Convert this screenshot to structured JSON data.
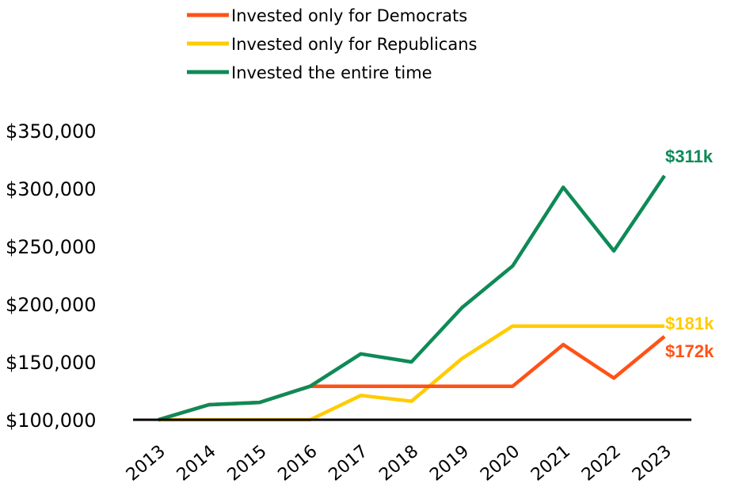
{
  "chart_data": {
    "type": "line",
    "title": "",
    "xlabel": "",
    "ylabel": "",
    "x": [
      "2013",
      "2014",
      "2015",
      "2016",
      "2017",
      "2018",
      "2019",
      "2020",
      "2021",
      "2022",
      "2023"
    ],
    "ylim": [
      100000,
      350000
    ],
    "yticks": [
      100000,
      150000,
      200000,
      250000,
      300000,
      350000
    ],
    "ytick_labels": [
      "$100,000",
      "$150,000",
      "$200,000",
      "$250,000",
      "$300,000",
      "$350,000"
    ],
    "grid": false,
    "legend_position": "top-center",
    "series": [
      {
        "name": "Invested only for Democrats",
        "color": "#FF5216",
        "values": [
          100000,
          113000,
          115000,
          129000,
          129000,
          129000,
          129000,
          129000,
          165000,
          136000,
          172000
        ],
        "end_label": "$172k"
      },
      {
        "name": "Invested only for Republicans",
        "color": "#FFCC00",
        "values": [
          100000,
          100000,
          100000,
          100000,
          121000,
          116000,
          153000,
          181000,
          181000,
          181000,
          181000
        ],
        "end_label": "$181k"
      },
      {
        "name": "Invested the entire time",
        "color": "#0E8A57",
        "values": [
          100000,
          113000,
          115000,
          129000,
          157000,
          150000,
          197000,
          233000,
          301000,
          246000,
          311000
        ],
        "end_label": "$311k"
      }
    ]
  }
}
